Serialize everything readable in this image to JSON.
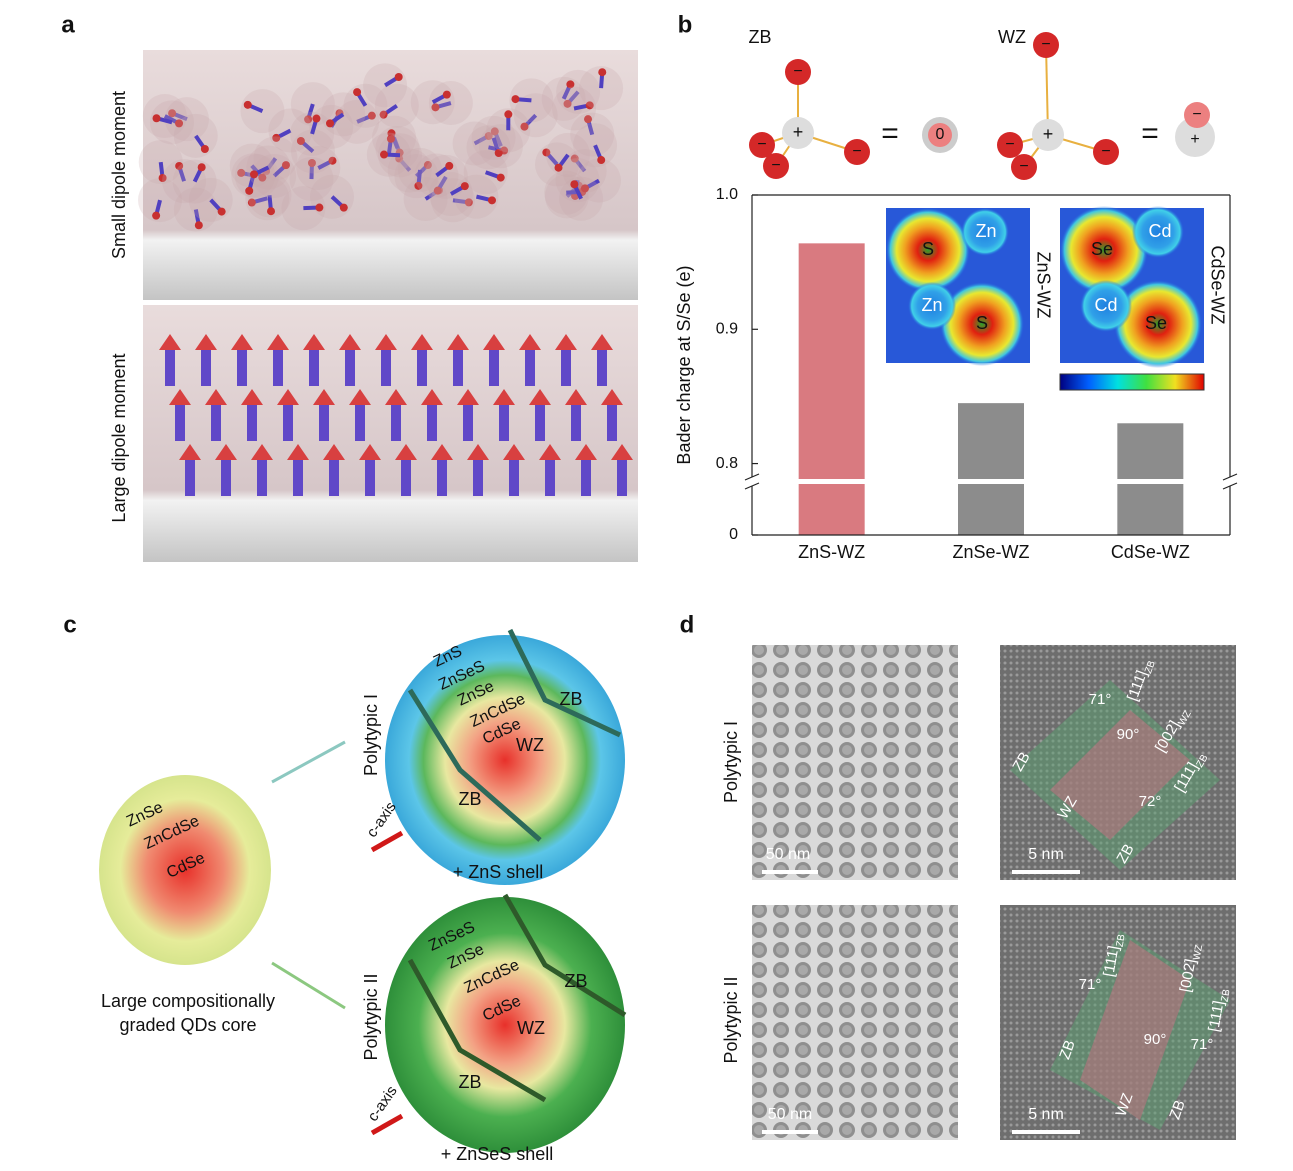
{
  "figure": {
    "panel_a": {
      "label": "a",
      "top_label": "Small dipole moment",
      "bottom_label": "Large dipole moment"
    },
    "panel_b": {
      "label": "b",
      "zb": "ZB",
      "wz": "WZ",
      "plus": "+",
      "minus": "−",
      "zero": "0",
      "equals": "=",
      "inset_1": {
        "title": "ZnS-WZ",
        "atoms": [
          "S",
          "Zn",
          "Zn",
          "S"
        ]
      },
      "inset_2": {
        "title": "CdSe-WZ",
        "atoms": [
          "Se",
          "Cd",
          "Cd",
          "Se"
        ]
      }
    },
    "panel_c": {
      "label": "c",
      "core": {
        "layers": [
          "ZnSe",
          "ZnCdSe",
          "CdSe"
        ],
        "caption": [
          "Large compositionally",
          "graded  QDs core"
        ]
      },
      "polytypic_1": {
        "title": "Polytypic I",
        "layers": [
          "ZnS",
          "ZnSeS",
          "ZnSe",
          "ZnCdSe",
          "CdSe"
        ],
        "core": "WZ",
        "facets": [
          "ZB",
          "ZB"
        ],
        "axis": "c-axis",
        "shell": "+ ZnS shell"
      },
      "polytypic_2": {
        "title": "Polytypic II",
        "layers": [
          "ZnSeS",
          "ZnSe",
          "ZnCdSe",
          "CdSe"
        ],
        "core": "WZ",
        "facets": [
          "ZB",
          "ZB"
        ],
        "axis": "c-axis",
        "shell": "+ ZnSeS shell"
      }
    },
    "panel_d": {
      "label": "d",
      "rows": [
        "Polytypic I",
        "Polytypic II"
      ],
      "scale_low": "50 nm",
      "scale_high": "5 nm",
      "annotations_1": [
        {
          "text": "71°"
        },
        {
          "text": "[111]",
          "sub": "ZB"
        },
        {
          "text": "90°"
        },
        {
          "text": "[002]",
          "sub": "WZ"
        },
        {
          "text": "[111]",
          "sub": "ZB"
        },
        {
          "text": "72°"
        },
        {
          "text": "ZB"
        },
        {
          "text": "WZ"
        },
        {
          "text": "ZB"
        }
      ],
      "annotations_2": [
        {
          "text": "71°"
        },
        {
          "text": "[111]",
          "sub": "ZB"
        },
        {
          "text": "[002]",
          "sub": "WZ"
        },
        {
          "text": "90°"
        },
        {
          "text": "71°"
        },
        {
          "text": "[111]",
          "sub": "ZB"
        },
        {
          "text": "ZB"
        },
        {
          "text": "WZ"
        },
        {
          "text": "ZB"
        }
      ]
    }
  },
  "chart_data": {
    "type": "bar",
    "ylabel": "Bader charge at S/Se (e)",
    "categories": [
      "ZnS-WZ",
      "ZnSe-WZ",
      "CdSe-WZ"
    ],
    "values": [
      0.964,
      0.845,
      0.83
    ],
    "colors": [
      "#d97a80",
      "#8c8c8c",
      "#8c8c8c"
    ],
    "ylim": [
      0,
      1.0
    ],
    "ybreak": [
      0.04,
      0.79
    ],
    "yticks": [
      0,
      0.8,
      0.9,
      {
        "value": 1.0,
        "label": "1.0"
      }
    ]
  }
}
